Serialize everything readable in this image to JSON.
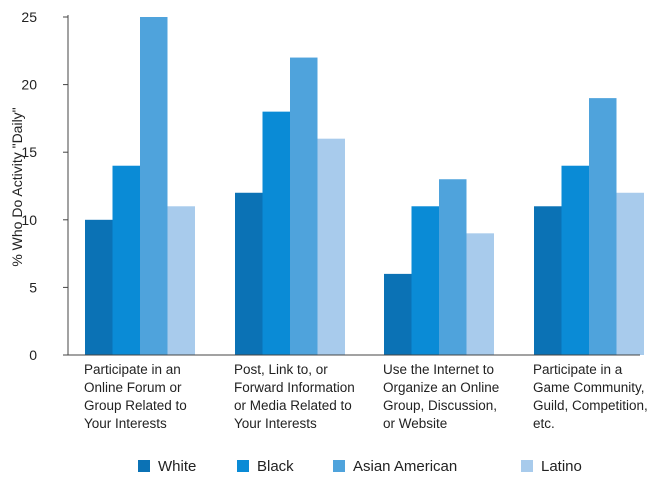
{
  "chart_data": {
    "type": "bar",
    "title": "",
    "xlabel": "",
    "ylabel": "% Who Do Activity \"Daily\"",
    "ylim": [
      0,
      25
    ],
    "yticks": [
      0,
      5,
      10,
      15,
      20,
      25
    ],
    "grid": false,
    "legend_position": "bottom",
    "categories": [
      [
        "Participate in an",
        "Online Forum or",
        "Group Related to",
        "Your Interests"
      ],
      [
        "Post, Link to, or",
        "Forward Information",
        "or Media Related to",
        "Your Interests"
      ],
      [
        "Use the Internet to",
        "Organize an Online",
        "Group, Discussion,",
        "or Website"
      ],
      [
        "Participate in a",
        "Game Community,",
        "Guild, Competition,",
        "etc."
      ]
    ],
    "series": [
      {
        "name": "White",
        "color": "#0b72b5",
        "values": [
          10,
          12,
          6,
          11
        ]
      },
      {
        "name": "Black",
        "color": "#0a8bd6",
        "values": [
          14,
          18,
          11,
          14
        ]
      },
      {
        "name": "Asian American",
        "color": "#4fa3dc",
        "values": [
          25,
          22,
          13,
          19
        ]
      },
      {
        "name": "Latino",
        "color": "#a8cbec",
        "values": [
          11,
          16,
          9,
          12
        ]
      }
    ]
  }
}
